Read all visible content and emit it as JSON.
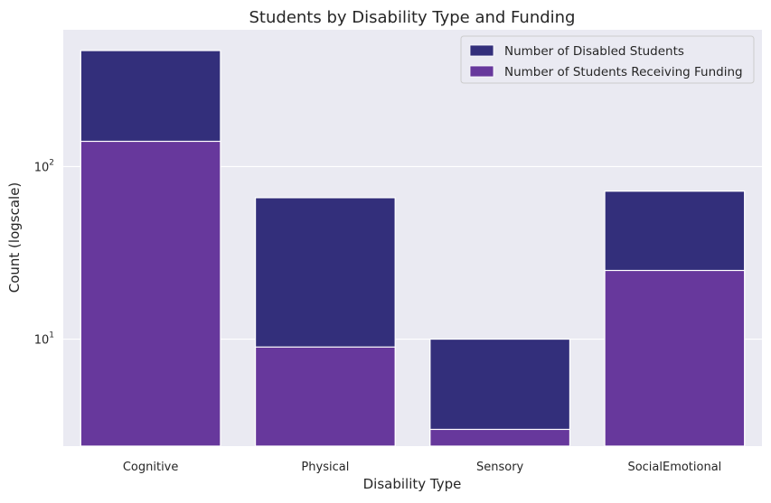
{
  "chart_data": {
    "type": "bar",
    "title": "Students by Disability Type and Funding",
    "xlabel": "Disability Type",
    "ylabel": "Count (logscale)",
    "yscale": "log",
    "ylim": [
      2.4,
      620
    ],
    "yticks": [
      {
        "value": 10,
        "base": "10",
        "exp": "1"
      },
      {
        "value": 100,
        "base": "10",
        "exp": "2"
      }
    ],
    "categories": [
      "Cognitive",
      "Physical",
      "Sensory",
      "SocialEmotional"
    ],
    "series": [
      {
        "name": "Number of Disabled Students",
        "color": "#332f7b",
        "values": [
          470,
          66,
          10,
          72
        ]
      },
      {
        "name": "Number of Students Receiving Funding",
        "color": "#67389c",
        "values": [
          140,
          9,
          3,
          25
        ]
      }
    ],
    "grid": true,
    "legend_position": "top-right",
    "background": "#eaeaf2"
  }
}
